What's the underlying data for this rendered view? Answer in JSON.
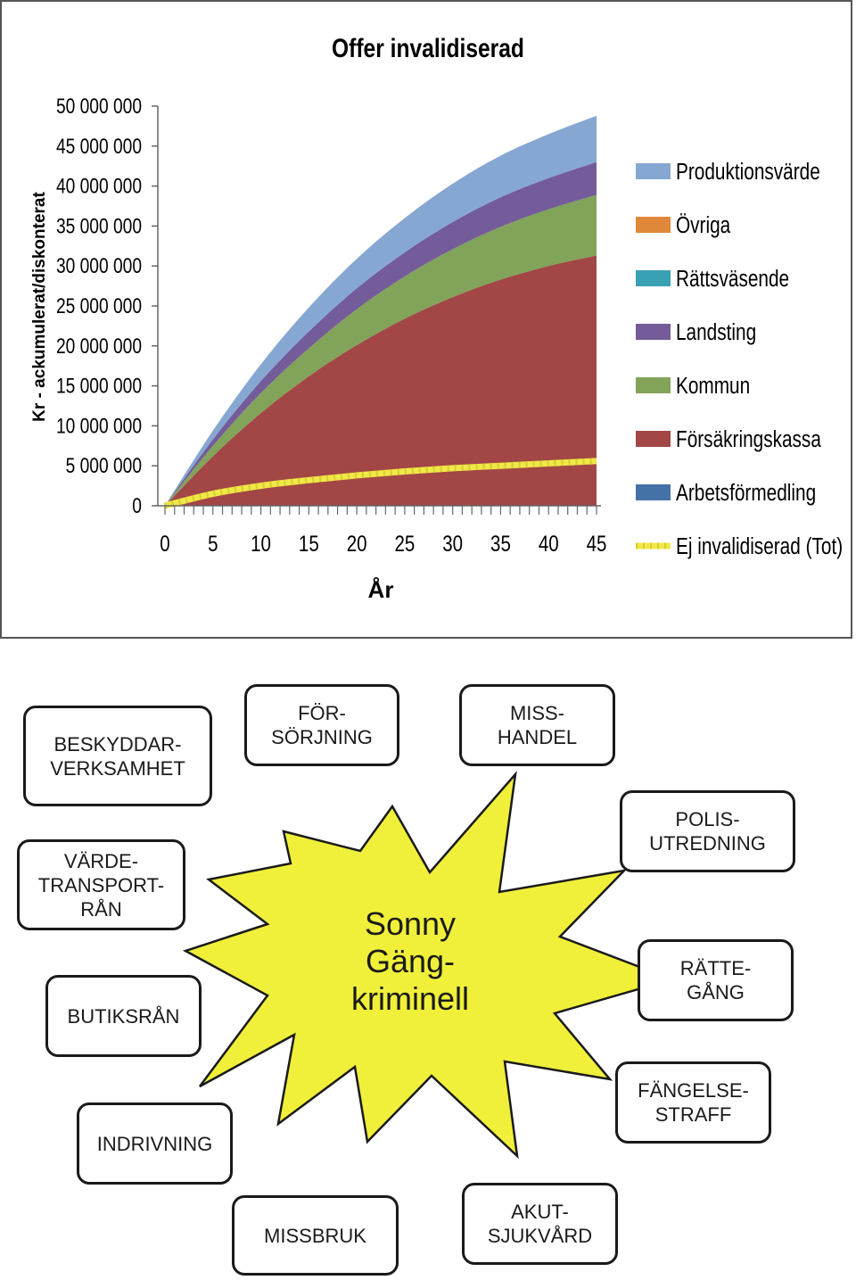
{
  "chart_data": {
    "type": "area",
    "title": "Offer invalidiserad",
    "xlabel": "År",
    "ylabel": "Kr - ackumulerat/diskonterat",
    "xlim": [
      0,
      45
    ],
    "ylim": [
      0,
      50000000
    ],
    "x_ticks": [
      "0",
      "5",
      "10",
      "15",
      "20",
      "25",
      "30",
      "35",
      "40",
      "45"
    ],
    "y_ticks": [
      "0",
      "5 000 000",
      "10 000 000",
      "15 000 000",
      "20 000 000",
      "25 000 000",
      "30 000 000",
      "35 000 000",
      "40 000 000",
      "45 000 000",
      "50 000 000"
    ],
    "grid": false,
    "legend_position": "right",
    "stacked": true,
    "x": [
      0,
      5,
      10,
      15,
      20,
      25,
      30,
      35,
      40,
      45
    ],
    "series": [
      {
        "name": "Arbetsförmedling",
        "color": "#4472a8",
        "values": [
          0,
          0,
          0,
          0,
          0,
          0,
          0,
          0,
          0,
          0
        ]
      },
      {
        "name": "Försäkringskassa",
        "color": "#a34646",
        "values": [
          0,
          6200000,
          11600000,
          16200000,
          20100000,
          23400000,
          26100000,
          28300000,
          30000000,
          31300000
        ]
      },
      {
        "name": "Kommun",
        "color": "#82a35a",
        "values": [
          0,
          1300000,
          2500000,
          3500000,
          4500000,
          5300000,
          6000000,
          6600000,
          7100000,
          7600000
        ]
      },
      {
        "name": "Landsting",
        "color": "#735c99",
        "values": [
          0,
          800000,
          1500000,
          2100000,
          2600000,
          3000000,
          3400000,
          3700000,
          3900000,
          4100000
        ]
      },
      {
        "name": "Rättsväsende",
        "color": "#3aa0b3",
        "values": [
          0,
          0,
          0,
          0,
          0,
          0,
          0,
          0,
          0,
          0
        ]
      },
      {
        "name": "Övriga",
        "color": "#e0883a",
        "values": [
          0,
          0,
          0,
          0,
          0,
          0,
          0,
          0,
          0,
          0
        ]
      },
      {
        "name": "Produktionsvärde",
        "color": "#86a7d2",
        "values": [
          0,
          1100000,
          2100000,
          3000000,
          3700000,
          4300000,
          4800000,
          5200000,
          5500000,
          5800000
        ]
      }
    ],
    "line_series": {
      "name": "Ej invalidiserad (Tot)",
      "color": "#f0e84a",
      "values": [
        0,
        1500000,
        2500000,
        3200000,
        3800000,
        4300000,
        4700000,
        5000000,
        5300000,
        5600000
      ]
    },
    "legend_order": [
      "Produktionsvärde",
      "Övriga",
      "Rättsväsende",
      "Landsting",
      "Kommun",
      "Försäkringskassa",
      "Arbetsförmedling",
      "Ej invalidiserad (Tot)"
    ]
  },
  "diagram": {
    "center_label": "Sonny\nGäng-\nkriminell",
    "star_color": "#f0f03a",
    "boxes": {
      "beskyddar": "BESKYDDAR-\nVERKSAMHET",
      "forsorjning": "FÖR-\nSÖRJNING",
      "misshandel": "MISS-\nHANDEL",
      "polis": "POLIS-\nUTREDNING",
      "varde": "VÄRDE-\nTRANSPORT-\nRÅN",
      "rattegang": "RÄTTE-\nGÅNG",
      "butiksran": "BUTIKSRÅN",
      "fangelse": "FÄNGELSE-\nSTRAFF",
      "indrivning": "INDRIVNING",
      "missbruk": "MISSBRUK",
      "akut": "AKUT-\nSJUKVÅRD"
    }
  }
}
